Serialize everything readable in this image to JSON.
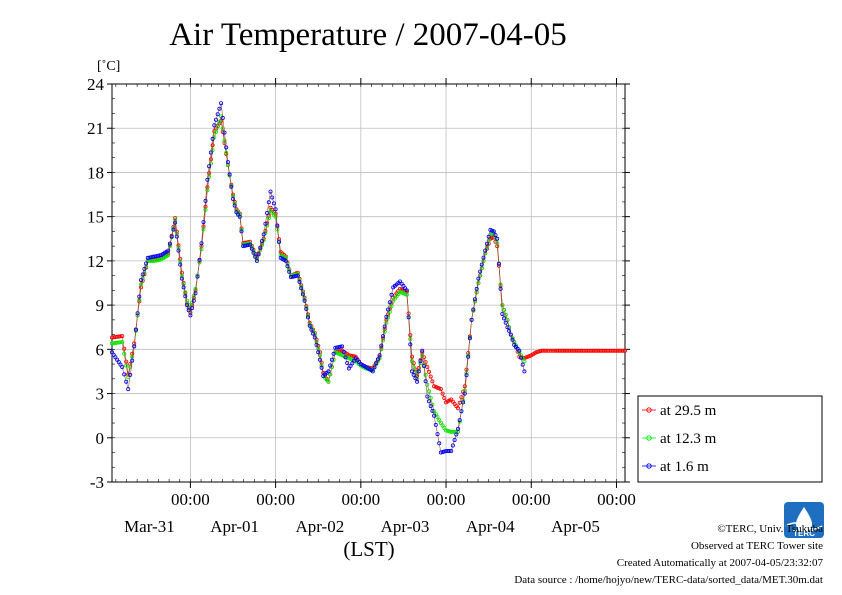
{
  "chart_data": {
    "type": "line",
    "title": "Air Temperature / 2007-04-05",
    "ylabel": "[˚C]",
    "xlabel": "(LST)",
    "ylim": [
      -3,
      24
    ],
    "yticks": [
      -3,
      0,
      3,
      6,
      9,
      12,
      15,
      18,
      21,
      24
    ],
    "x_range_days": [
      -0.92,
      5.1
    ],
    "x_ticks": [
      {
        "time": "00:00",
        "date": "Mar-31",
        "day": 0
      },
      {
        "time": "00:00",
        "date": "Apr-01",
        "day": 1
      },
      {
        "time": "00:00",
        "date": "Apr-02",
        "day": 2
      },
      {
        "time": "00:00",
        "date": "Apr-03",
        "day": 3
      },
      {
        "time": "00:00",
        "date": "Apr-04",
        "day": 4
      },
      {
        "time": "00:00",
        "date": "Apr-05",
        "day": 5
      }
    ],
    "grid": true,
    "legend": "right",
    "series": [
      {
        "name": "at 29.5 m",
        "color": "#ff0000",
        "x": [
          -0.92,
          -0.8,
          -0.73,
          -0.66,
          -0.58,
          -0.5,
          -0.42,
          -0.34,
          -0.26,
          -0.18,
          -0.1,
          -0.04,
          0.0,
          0.06,
          0.13,
          0.2,
          0.28,
          0.36,
          0.44,
          0.5,
          0.54,
          0.58,
          0.62,
          0.7,
          0.78,
          0.86,
          0.94,
          1.0,
          1.06,
          1.12,
          1.18,
          1.26,
          1.34,
          1.4,
          1.46,
          1.52,
          1.56,
          1.62,
          1.7,
          1.78,
          1.86,
          1.94,
          2.0,
          2.06,
          2.14,
          2.22,
          2.3,
          2.38,
          2.46,
          2.54,
          2.6,
          2.66,
          2.72,
          2.78,
          2.86,
          2.94,
          3.0,
          3.06,
          3.14,
          3.22,
          3.3,
          3.38,
          3.46,
          3.52,
          3.56,
          3.6,
          3.66,
          3.72,
          3.76,
          3.8,
          3.86,
          3.92,
          4.0,
          4.06,
          4.12,
          4.18,
          4.23,
          4.28,
          4.34,
          4.4,
          4.46,
          4.52,
          4.58,
          4.64,
          4.7,
          4.76,
          4.82,
          4.88,
          4.94,
          5.0,
          5.06,
          5.1
        ],
        "y": [
          6.8,
          6.9,
          4.3,
          6.4,
          10.2,
          12.0,
          12.1,
          12.2,
          12.5,
          14.9,
          11.2,
          9.1,
          8.5,
          10.0,
          13.0,
          17.0,
          20.8,
          21.5,
          18.5,
          16.5,
          15.5,
          15.2,
          13.2,
          13.3,
          12.2,
          13.5,
          15.6,
          15.2,
          12.6,
          12.3,
          11.0,
          11.2,
          9.5,
          7.8,
          7.1,
          5.8,
          4.4,
          3.8,
          5.8,
          5.9,
          5.6,
          5.5,
          5.0,
          4.8,
          4.7,
          5.5,
          8.0,
          9.5,
          10.1,
          9.9,
          5.5,
          4.2,
          5.8,
          4.8,
          3.5,
          3.3,
          2.4,
          2.6,
          2.0,
          3.5,
          8.0,
          10.5,
          12.5,
          13.5,
          13.6,
          13.0,
          9.0,
          8.0,
          7.0,
          6.5,
          5.5,
          5.4,
          5.6,
          5.8,
          5.9,
          5.9,
          5.9,
          5.9,
          5.9,
          5.9,
          5.9,
          5.9,
          5.9,
          5.9,
          5.9,
          5.9,
          5.9,
          5.9,
          5.9,
          5.9,
          5.9,
          5.9
        ]
      },
      {
        "name": "at 12.3 m",
        "color": "#00ee00",
        "x": [
          -0.92,
          -0.8,
          -0.73,
          -0.66,
          -0.58,
          -0.5,
          -0.42,
          -0.34,
          -0.26,
          -0.18,
          -0.1,
          -0.04,
          0.0,
          0.06,
          0.13,
          0.2,
          0.28,
          0.36,
          0.44,
          0.5,
          0.54,
          0.58,
          0.62,
          0.7,
          0.78,
          0.86,
          0.94,
          1.0,
          1.06,
          1.12,
          1.18,
          1.26,
          1.34,
          1.4,
          1.46,
          1.52,
          1.56,
          1.62,
          1.7,
          1.78,
          1.86,
          1.94,
          2.0,
          2.06,
          2.14,
          2.22,
          2.3,
          2.38,
          2.46,
          2.54,
          2.6,
          2.66,
          2.72,
          2.78,
          2.86,
          2.94,
          3.0,
          3.06,
          3.14,
          3.22,
          3.3,
          3.38,
          3.46,
          3.52,
          3.56,
          3.6,
          3.66,
          3.72,
          3.76,
          3.8,
          3.86,
          3.92
        ],
        "y": [
          6.4,
          6.5,
          4.1,
          6.2,
          10.4,
          12.0,
          12.0,
          12.1,
          12.4,
          14.8,
          11.0,
          9.3,
          8.7,
          10.1,
          12.8,
          16.8,
          20.4,
          21.8,
          18.5,
          16.4,
          15.4,
          15.1,
          13.1,
          13.2,
          12.1,
          13.4,
          15.4,
          15.0,
          12.4,
          12.2,
          11.0,
          11.1,
          9.4,
          7.7,
          7.0,
          5.6,
          4.2,
          3.8,
          5.8,
          5.6,
          5.4,
          5.2,
          4.9,
          4.7,
          4.6,
          5.4,
          7.8,
          9.3,
          9.9,
          9.7,
          5.2,
          4.0,
          5.6,
          3.6,
          1.8,
          1.0,
          0.5,
          0.4,
          0.4,
          3.2,
          8.0,
          10.5,
          12.5,
          13.8,
          13.9,
          13.2,
          9.0,
          8.0,
          7.0,
          6.5,
          5.8,
          5.2
        ]
      },
      {
        "name": "at 1.6 m",
        "color": "#0000ff",
        "x": [
          -0.92,
          -0.8,
          -0.73,
          -0.66,
          -0.58,
          -0.5,
          -0.42,
          -0.34,
          -0.26,
          -0.18,
          -0.1,
          -0.04,
          0.0,
          0.06,
          0.13,
          0.2,
          0.28,
          0.36,
          0.44,
          0.5,
          0.54,
          0.58,
          0.62,
          0.7,
          0.78,
          0.86,
          0.94,
          1.0,
          1.06,
          1.12,
          1.18,
          1.26,
          1.34,
          1.4,
          1.46,
          1.52,
          1.56,
          1.62,
          1.7,
          1.78,
          1.86,
          1.94,
          2.0,
          2.06,
          2.14,
          2.22,
          2.3,
          2.38,
          2.46,
          2.54,
          2.6,
          2.66,
          2.72,
          2.78,
          2.86,
          2.94,
          3.0,
          3.06,
          3.14,
          3.22,
          3.3,
          3.38,
          3.46,
          3.52,
          3.56,
          3.6,
          3.66,
          3.72,
          3.76,
          3.8,
          3.86,
          3.92
        ],
        "y": [
          5.8,
          4.8,
          3.3,
          6.2,
          10.7,
          12.2,
          12.3,
          12.4,
          12.7,
          14.6,
          10.8,
          9.0,
          8.3,
          9.8,
          13.2,
          17.5,
          21.2,
          22.7,
          18.7,
          16.2,
          15.3,
          15.0,
          13.0,
          13.1,
          12.0,
          13.8,
          16.7,
          15.5,
          12.2,
          12.0,
          10.9,
          11.0,
          9.3,
          7.6,
          6.8,
          5.3,
          4.2,
          4.5,
          6.1,
          6.2,
          4.7,
          5.4,
          5.0,
          4.8,
          4.5,
          5.6,
          8.2,
          10.2,
          10.6,
          10.0,
          4.5,
          3.8,
          5.9,
          2.8,
          1.5,
          -1.0,
          -0.9,
          -0.9,
          0.6,
          3.0,
          8.0,
          10.8,
          12.7,
          14.1,
          14.0,
          13.5,
          8.4,
          7.5,
          7.0,
          6.3,
          5.9,
          4.5
        ]
      }
    ]
  },
  "legend": {
    "items": [
      "at 29.5 m",
      "at 12.3 m",
      "at 1.6 m"
    ]
  },
  "credits": {
    "copyright": "©TERC, Univ. Tsukuba",
    "observed": "Observed at TERC Tower site",
    "created": "Created Automatically at 2007-04-05/23:32:07",
    "source": "Data source : /home/hojyo/new/TERC-data/sorted_data/MET.30m.dat"
  },
  "logo": {
    "text": "TERC"
  }
}
